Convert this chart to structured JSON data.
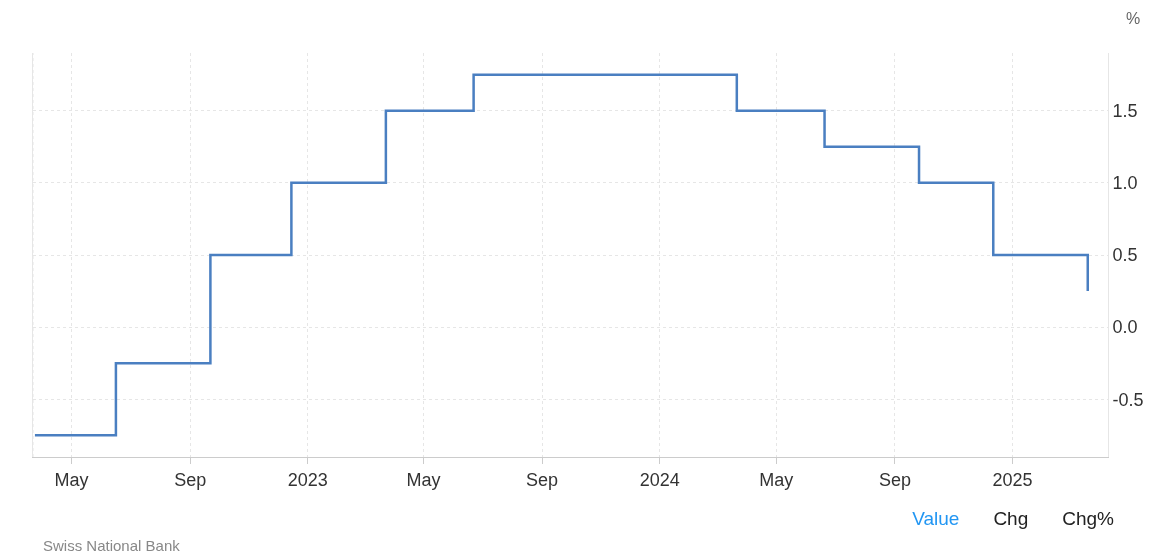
{
  "chart_data": {
    "type": "step",
    "ylabel": "%",
    "annotations": [
      "Swiss National Bank",
      "Value",
      "Chg",
      "Chg%"
    ],
    "x": [
      "2022-03-24",
      "2022-06-16",
      "2022-09-22",
      "2022-12-15",
      "2023-03-23",
      "2023-06-22",
      "2024-03-21",
      "2024-06-20",
      "2024-09-26",
      "2024-12-12",
      "2025-03-20"
    ],
    "series": [
      {
        "color": "#4a7fc1",
        "values": [
          -0.75,
          -0.25,
          0.5,
          1.0,
          1.5,
          1.75,
          1.5,
          1.25,
          1.0,
          0.5,
          0.25
        ]
      }
    ],
    "xlim": [
      "2022-03-22",
      "2025-04-10"
    ],
    "xticks": [
      {
        "value": "2022-05-01",
        "label": "May"
      },
      {
        "value": "2022-09-01",
        "label": "Sep"
      },
      {
        "value": "2023-01-01",
        "label": "2023"
      },
      {
        "value": "2023-05-01",
        "label": "May"
      },
      {
        "value": "2023-09-01",
        "label": "Sep"
      },
      {
        "value": "2024-01-01",
        "label": "2024"
      },
      {
        "value": "2024-05-01",
        "label": "May"
      },
      {
        "value": "2024-09-01",
        "label": "Sep"
      },
      {
        "value": "2025-01-01",
        "label": "2025"
      }
    ],
    "ylim": [
      -0.9,
      1.9
    ],
    "yticks": [
      {
        "value": -0.5,
        "label": "-0.5"
      },
      {
        "value": 0,
        "label": "0.0"
      },
      {
        "value": 0.5,
        "label": "0.5"
      },
      {
        "value": 1,
        "label": "1.0"
      },
      {
        "value": 1.5,
        "label": "1.5"
      }
    ],
    "grid": true,
    "line_style": "solid",
    "marker": "none"
  }
}
